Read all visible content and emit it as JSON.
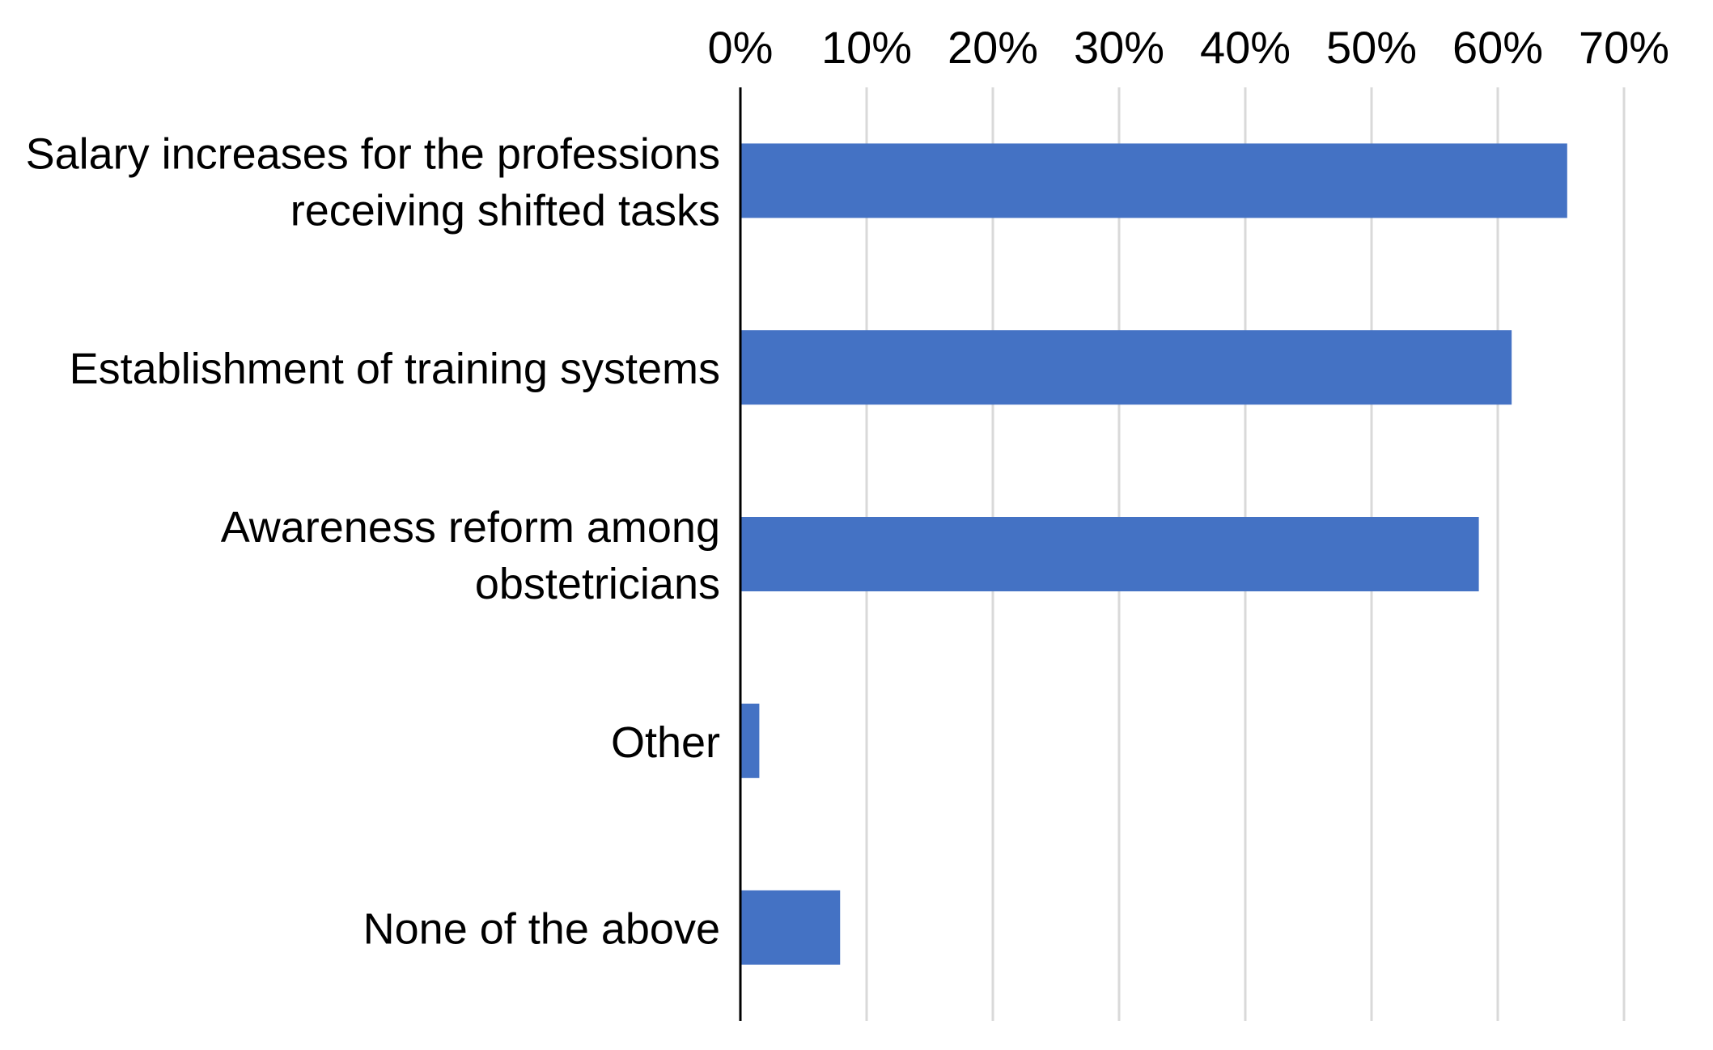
{
  "chart_data": {
    "type": "bar",
    "orientation": "horizontal",
    "title": "",
    "xlabel": "",
    "ylabel": "",
    "categories": [
      [
        "Salary increases for the professions",
        "receiving shifted tasks"
      ],
      [
        "Establishment of training systems"
      ],
      [
        "Awareness reform among",
        "obstetricians"
      ],
      [
        "Other"
      ],
      [
        "None of the above"
      ]
    ],
    "values": [
      65.5,
      61.1,
      58.5,
      1.5,
      7.9
    ],
    "xlim": [
      0,
      70
    ],
    "x_ticks": [
      "0%",
      "10%",
      "20%",
      "30%",
      "40%",
      "50%",
      "60%",
      "70%"
    ],
    "x_axis_position": "top",
    "grid": "vertical",
    "legend": "none",
    "colors": {
      "bar": "#4472C4",
      "grid": "#D9D9D9",
      "axis": "#000000"
    }
  }
}
